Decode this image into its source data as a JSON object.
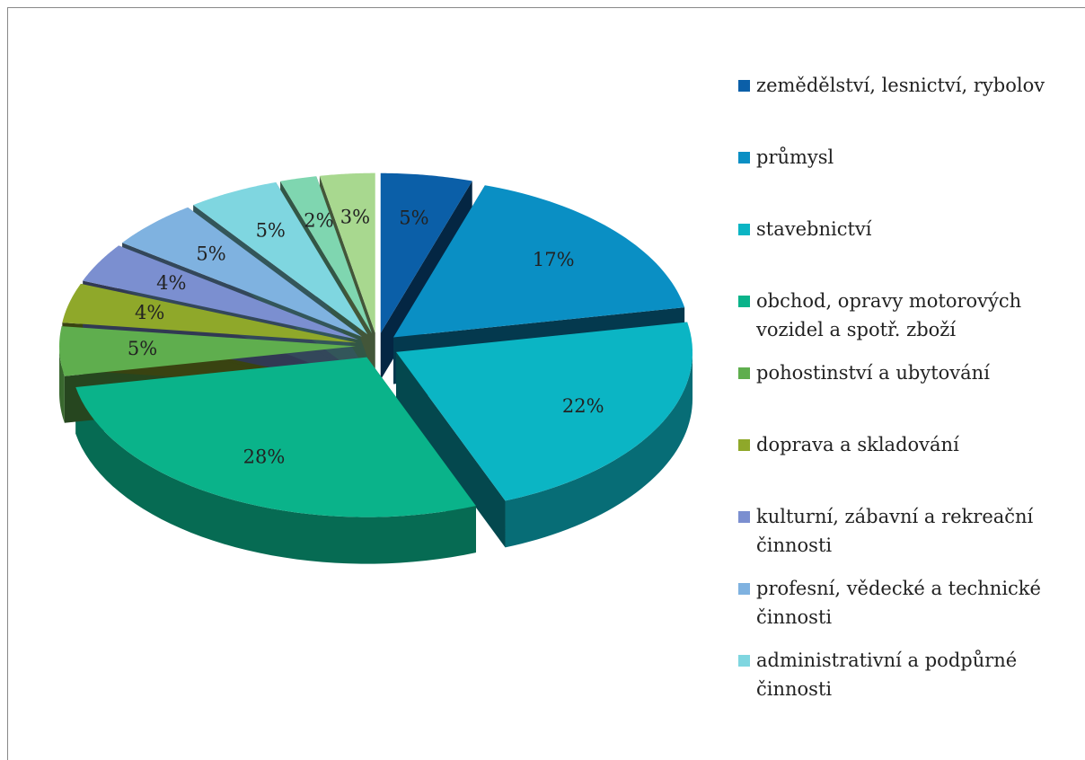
{
  "chart_data": {
    "type": "pie",
    "categories": [
      "zemědělství, lesnictví, rybolov",
      "průmysl",
      "stavebnictví",
      "obchod, opravy motorových vozidel a spotř. zboží",
      "pohostinství a ubytování",
      "doprava a skladování",
      "kulturní, zábavní a rekreační činnosti",
      "profesní, vědecké a technické činnosti",
      "administrativní a podpůrné činnosti",
      null,
      null
    ],
    "values": [
      5,
      17,
      22,
      28,
      5,
      4,
      4,
      5,
      5,
      2,
      3
    ],
    "value_labels": [
      "5%",
      "17%",
      "22%",
      "28%",
      "5%",
      "4%",
      "4%",
      "5%",
      "5%",
      "2%",
      "3%"
    ],
    "colors": [
      "#0b5fa8",
      "#0a8fc4",
      "#0bb5c4",
      "#0ab38a",
      "#5fae4e",
      "#8fa82a",
      "#7b8fd0",
      "#7fb2e0",
      "#7fd6e0",
      "#7fd6b0",
      "#a8d88f"
    ],
    "legend": "right"
  }
}
